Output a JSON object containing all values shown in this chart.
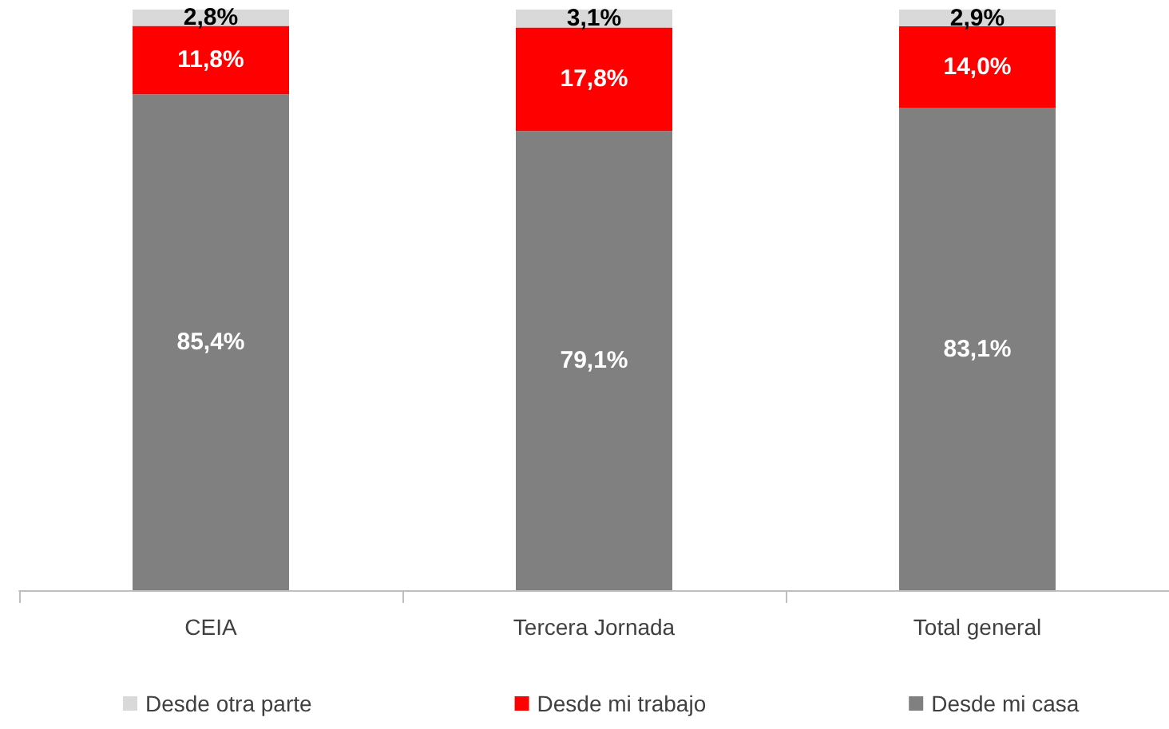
{
  "chart_data": {
    "type": "bar",
    "stacked": true,
    "categories": [
      "CEIA",
      "Tercera Jornada",
      "Total general"
    ],
    "ylim": [
      0,
      100
    ],
    "legend": "bottom",
    "grid": false,
    "series": [
      {
        "name": "Desde mi casa",
        "color": "#808080",
        "values": [
          85.4,
          79.1,
          83.1
        ],
        "value_labels": [
          "85,4%",
          "79,1%",
          "83,1%"
        ]
      },
      {
        "name": "Desde mi trabajo",
        "color": "#ff0000",
        "values": [
          11.8,
          17.8,
          14.0
        ],
        "value_labels": [
          "11,8%",
          "17,8%",
          "14,0%"
        ]
      },
      {
        "name": "Desde otra parte",
        "color": "#d9d9d9",
        "values": [
          2.8,
          3.1,
          2.9
        ],
        "value_labels": [
          "2,8%",
          "3,1%",
          "2,9%"
        ]
      }
    ]
  }
}
